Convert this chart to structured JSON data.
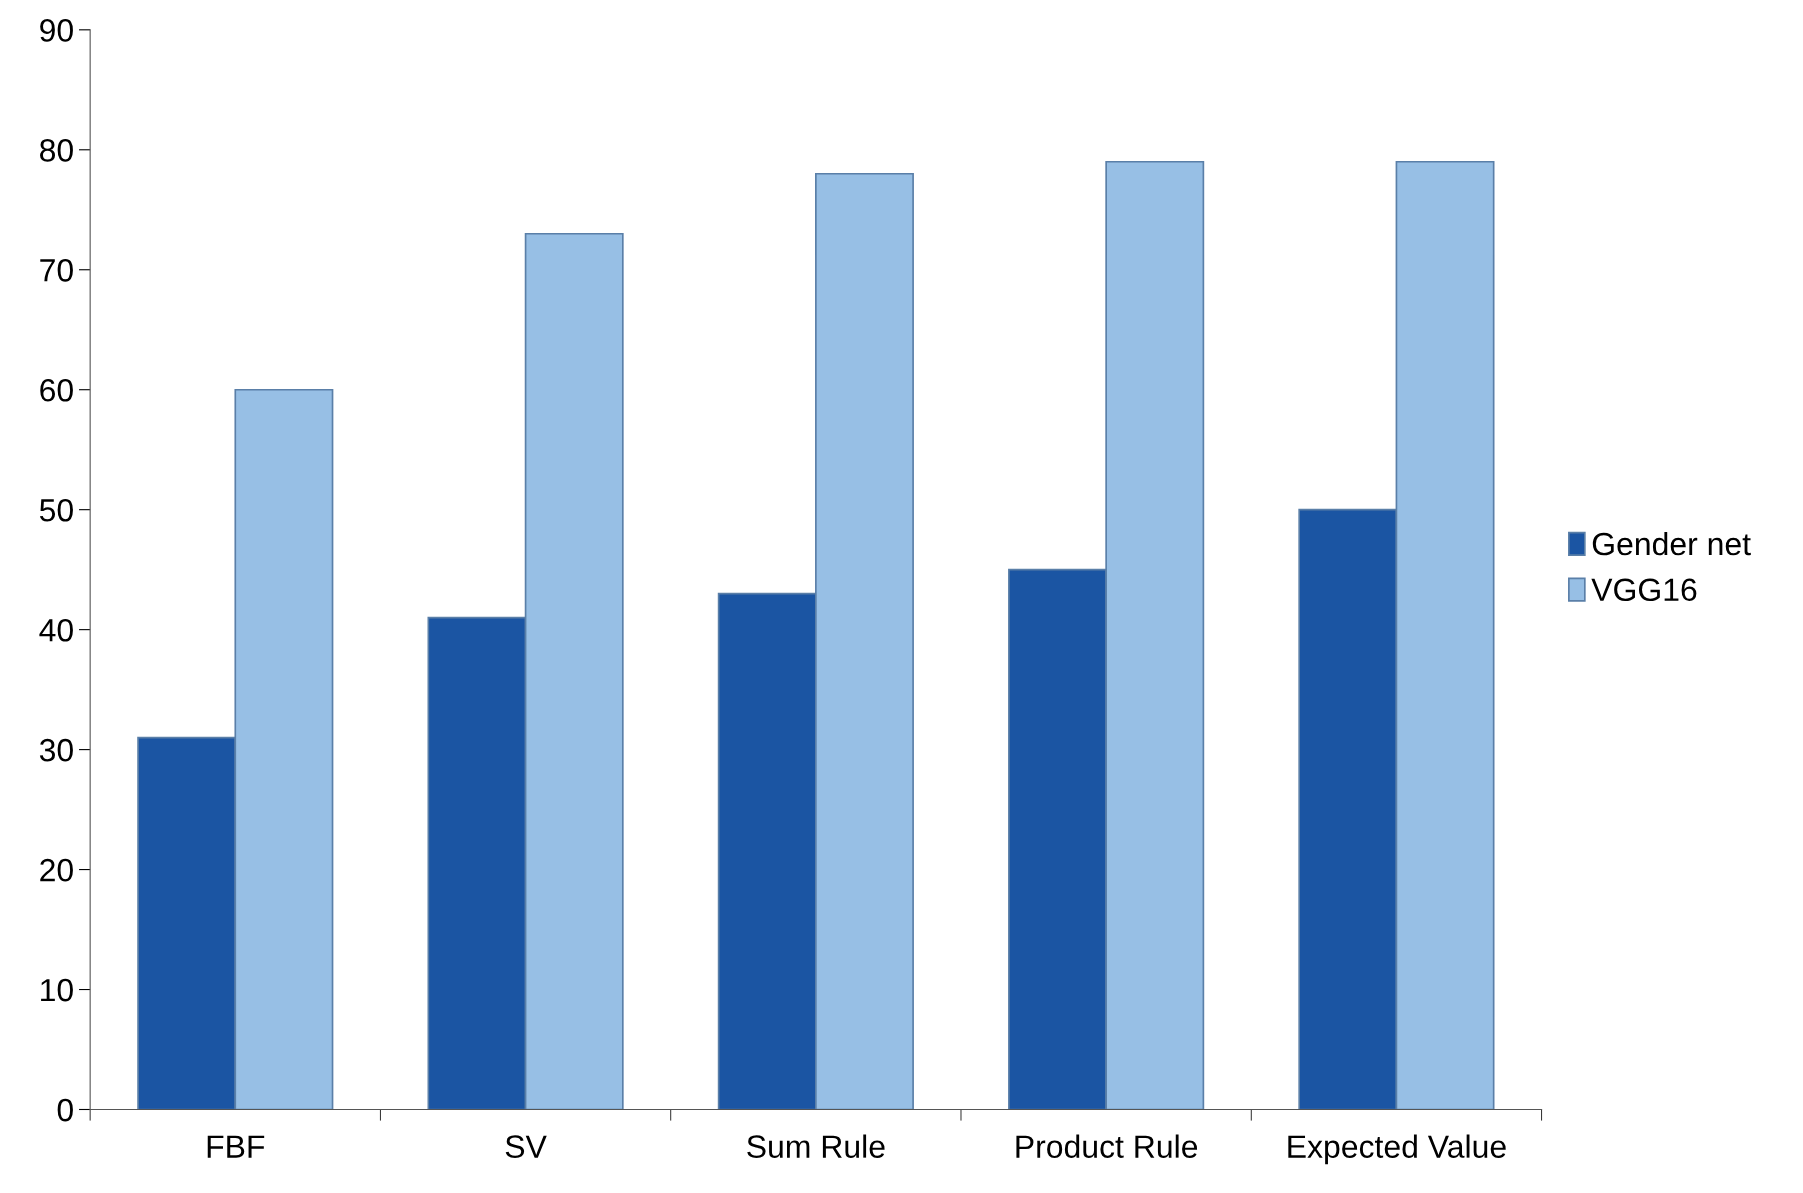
{
  "chart_data": {
    "type": "bar",
    "categories": [
      "FBF",
      "SV",
      "Sum Rule",
      "Product Rule",
      "Expected Value"
    ],
    "series": [
      {
        "name": "Gender net",
        "color": "#1b55a3",
        "values": [
          31,
          41,
          43,
          45,
          50
        ]
      },
      {
        "name": "VGG16",
        "color": "#97bfe5",
        "values": [
          60,
          73,
          78,
          79,
          79
        ]
      }
    ],
    "ylim": [
      0,
      90
    ],
    "yticks": [
      0,
      10,
      20,
      30,
      40,
      50,
      60,
      70,
      80,
      90
    ],
    "grid": false,
    "legend": "right"
  }
}
